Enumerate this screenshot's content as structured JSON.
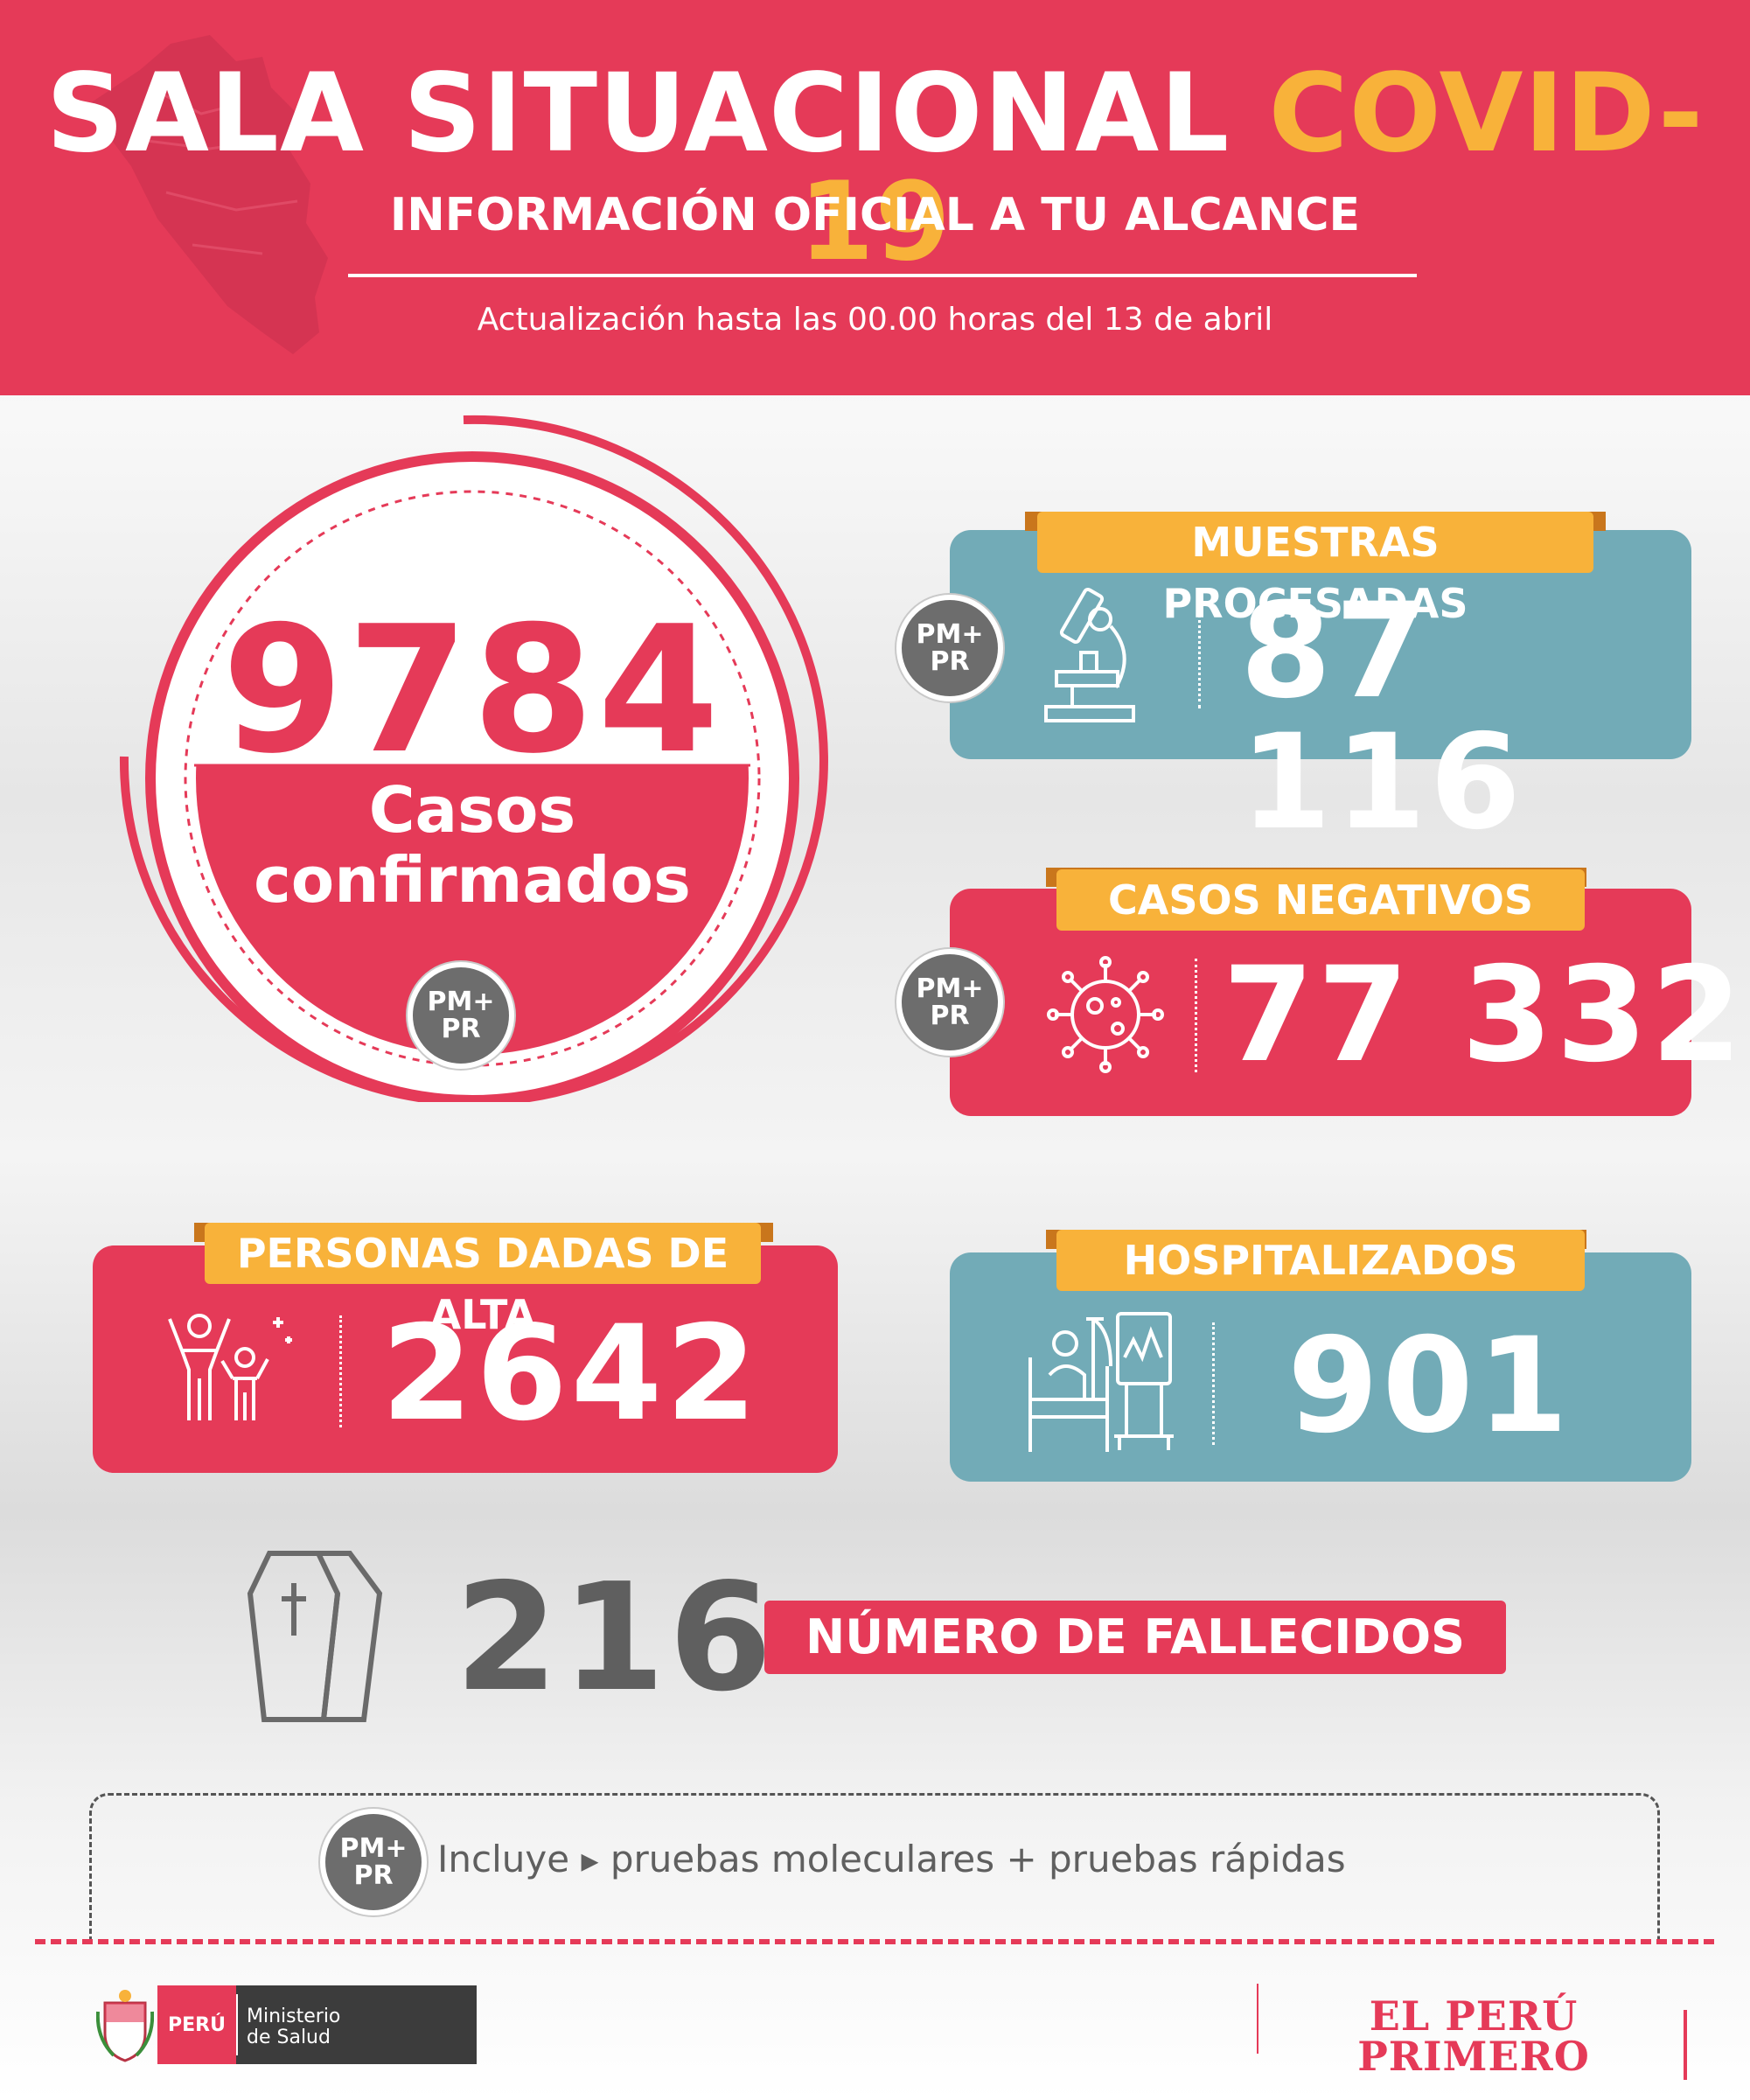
{
  "header": {
    "title_main": "SALA SITUACIONAL",
    "title_accent": "COVID-19",
    "subtitle": "INFORMACIÓN OFICIAL A TU ALCANCE",
    "update": "Actualización hasta las 00.00 horas del 13 de abril"
  },
  "badge": {
    "line1": "PM+",
    "line2": "PR"
  },
  "confirmed": {
    "value": "9784",
    "label_line1": "Casos",
    "label_line2": "confirmados"
  },
  "muestras": {
    "label": "MUESTRAS PROCESADAS",
    "value": "87 116"
  },
  "negativos": {
    "label": "CASOS NEGATIVOS",
    "value": "77 332"
  },
  "alta": {
    "label": "PERSONAS DADAS DE ALTA",
    "value": "2642"
  },
  "hospitalizados": {
    "label": "HOSPITALIZADOS",
    "value": "901"
  },
  "fallecidos": {
    "value": "216",
    "label": "NÚMERO DE FALLECIDOS"
  },
  "note": {
    "part1": "Incluye",
    "part2": "pruebas moleculares + pruebas rápidas"
  },
  "footer": {
    "peru": "PERÚ",
    "ministry_line1": "Ministerio",
    "ministry_line2": "de Salud",
    "brand": "EL PERÚ PRIMERO"
  },
  "colors": {
    "red": "#e53a58",
    "teal": "#72abb7",
    "yellow": "#f8b23a",
    "gray": "#6d6d6d"
  },
  "icons": [
    "peru-map-icon",
    "microscope-icon",
    "virus-icon",
    "family-icon",
    "hospital-bed-icon",
    "coffin-icon",
    "coat-of-arms-icon"
  ]
}
